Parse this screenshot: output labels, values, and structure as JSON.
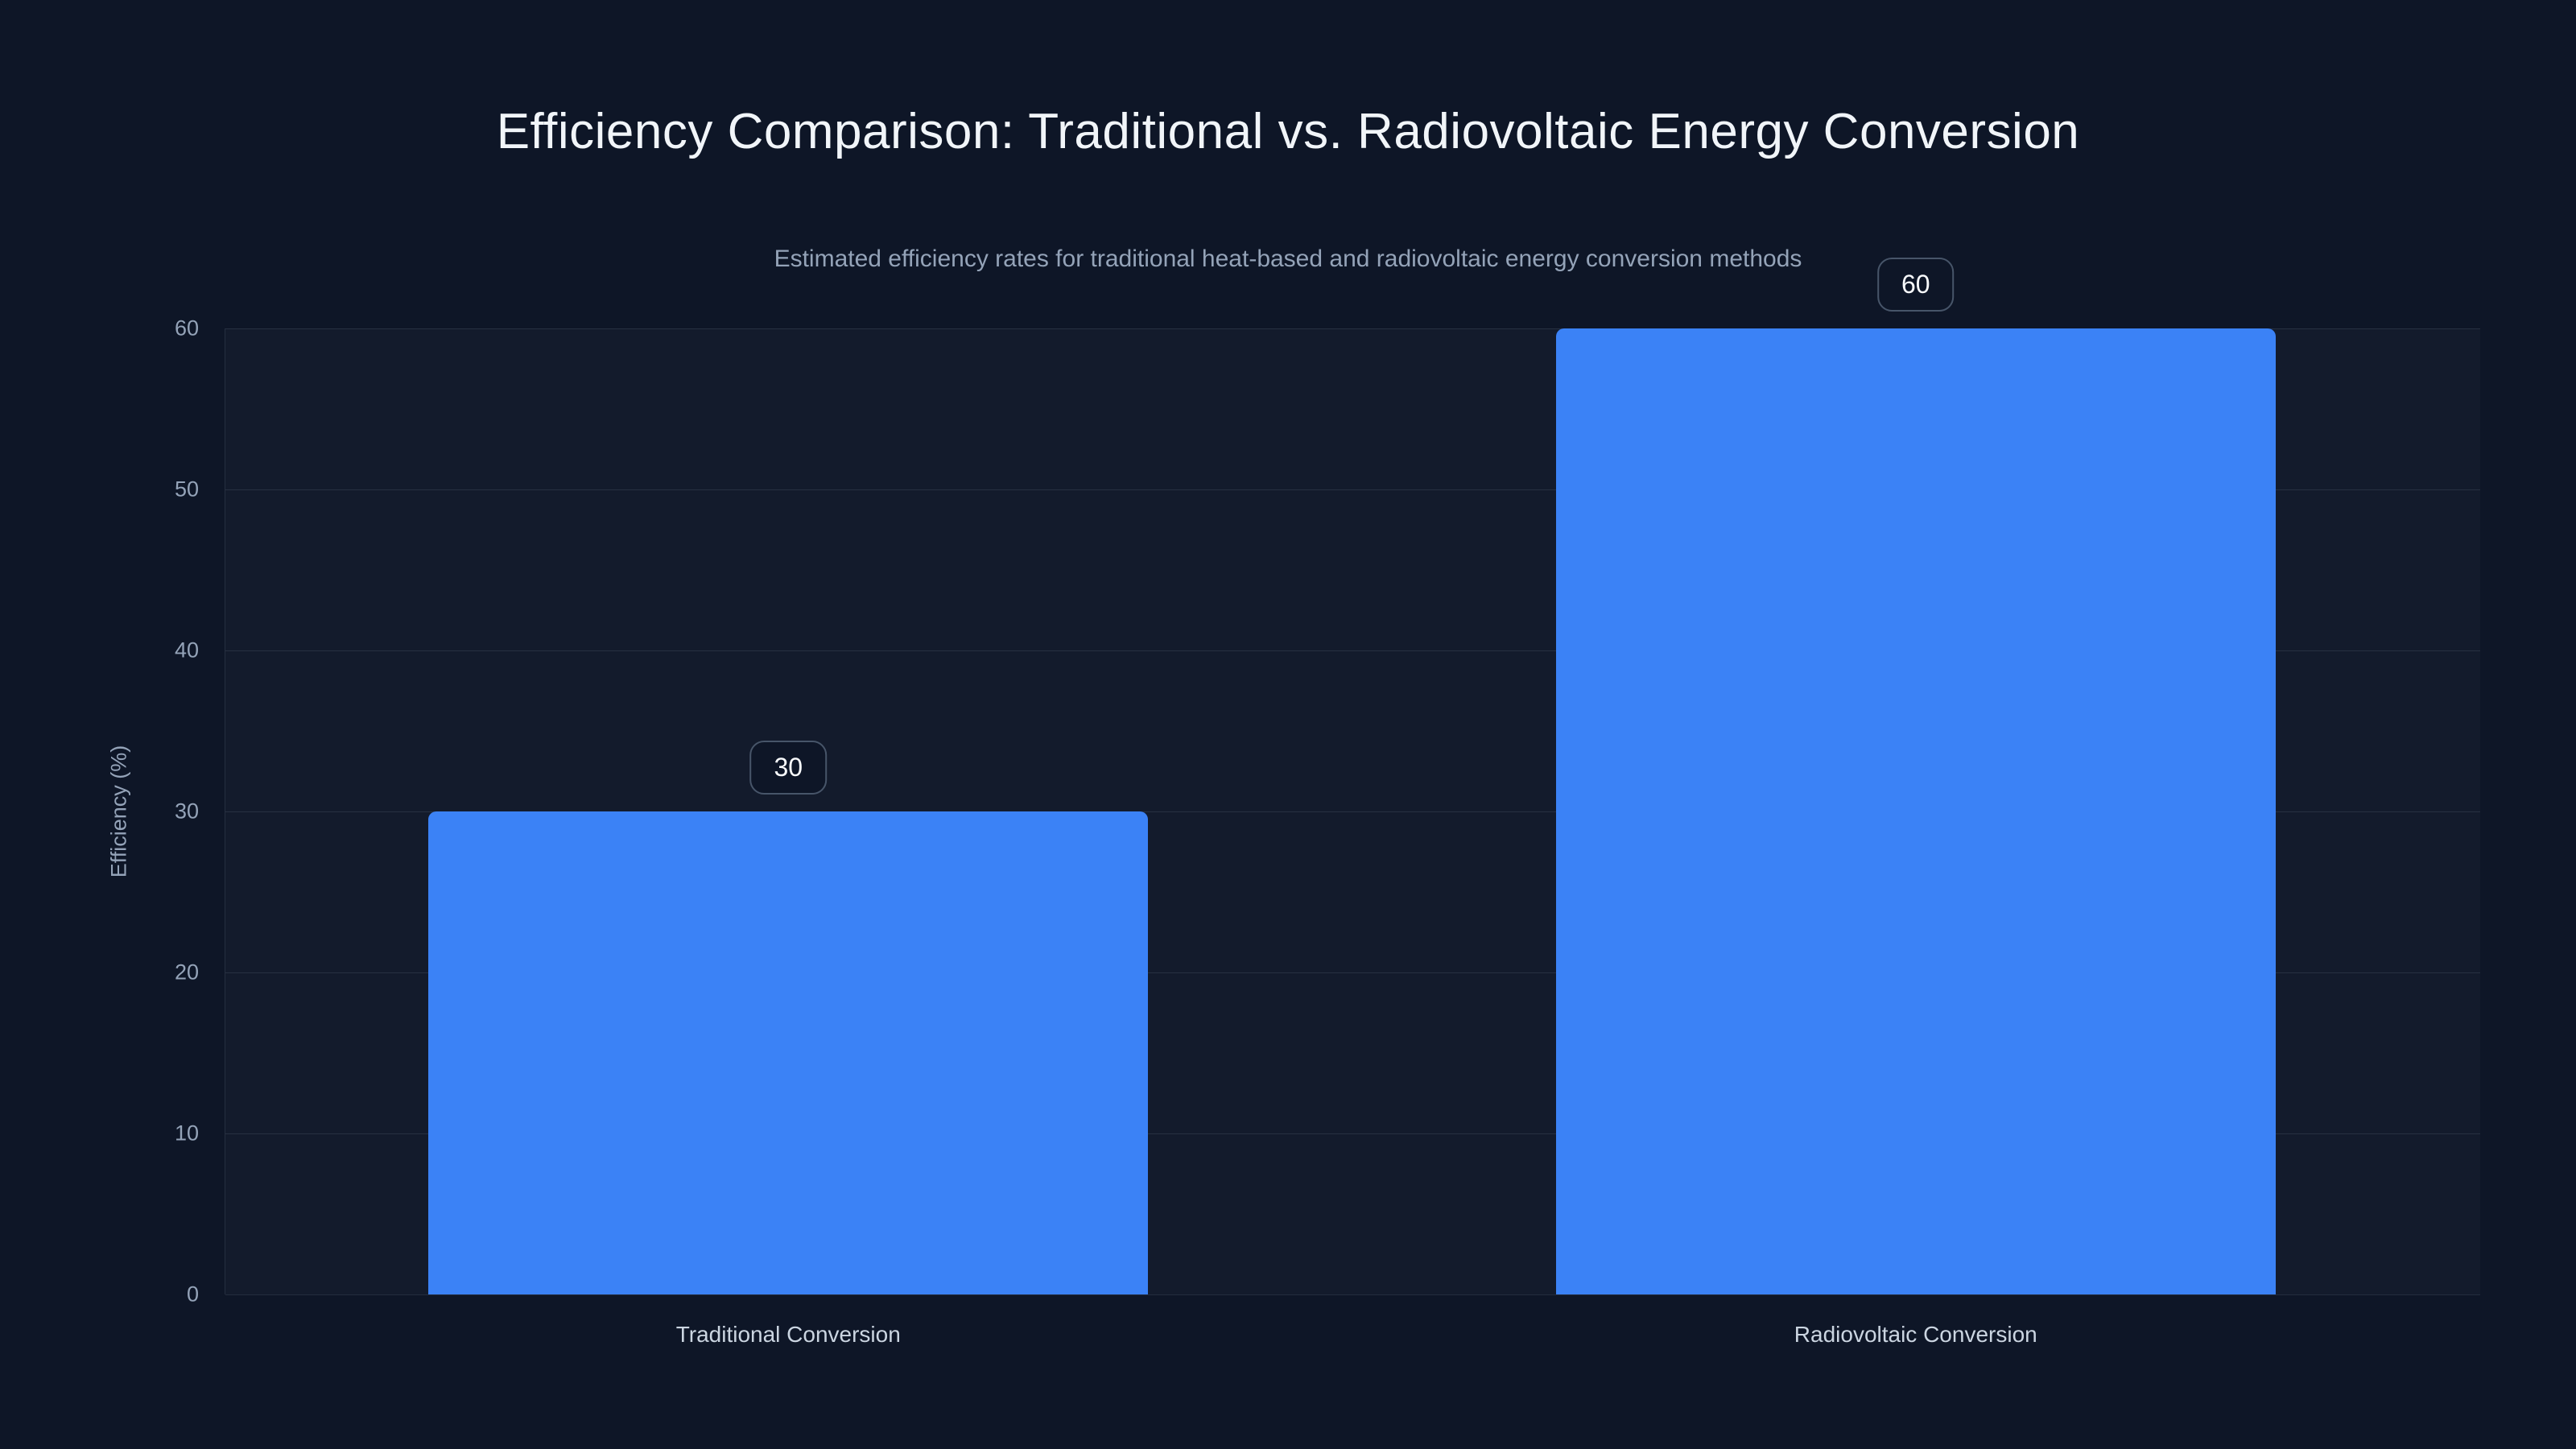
{
  "page": {
    "background": "#0e1627"
  },
  "chart_data": {
    "type": "bar",
    "title": "Efficiency Comparison: Traditional vs. Radiovoltaic Energy Conversion",
    "subtitle": "Estimated efficiency rates for traditional heat-based and radiovoltaic energy conversion methods",
    "categories": [
      "Traditional Conversion",
      "Radiovoltaic Conversion"
    ],
    "values": [
      30,
      60
    ],
    "value_labels": [
      "30",
      "60"
    ],
    "xlabel": "",
    "ylabel": "Efficiency (%)",
    "ylim": [
      0,
      60
    ],
    "yticks": [
      0,
      10,
      20,
      30,
      40,
      50,
      60
    ],
    "grid": true,
    "legend": false,
    "bar_color": "#3b82f6",
    "colors": {
      "background": "#0e1627",
      "title_text": "#f1f5f9",
      "subtitle_text": "#94a3b8",
      "tick_text": "#94a3b8",
      "x_label_text": "#cbd5e1",
      "gridline": "rgba(148,163,184,0.16)",
      "value_badge_border": "#475569",
      "value_badge_text": "#f8fafc"
    }
  }
}
